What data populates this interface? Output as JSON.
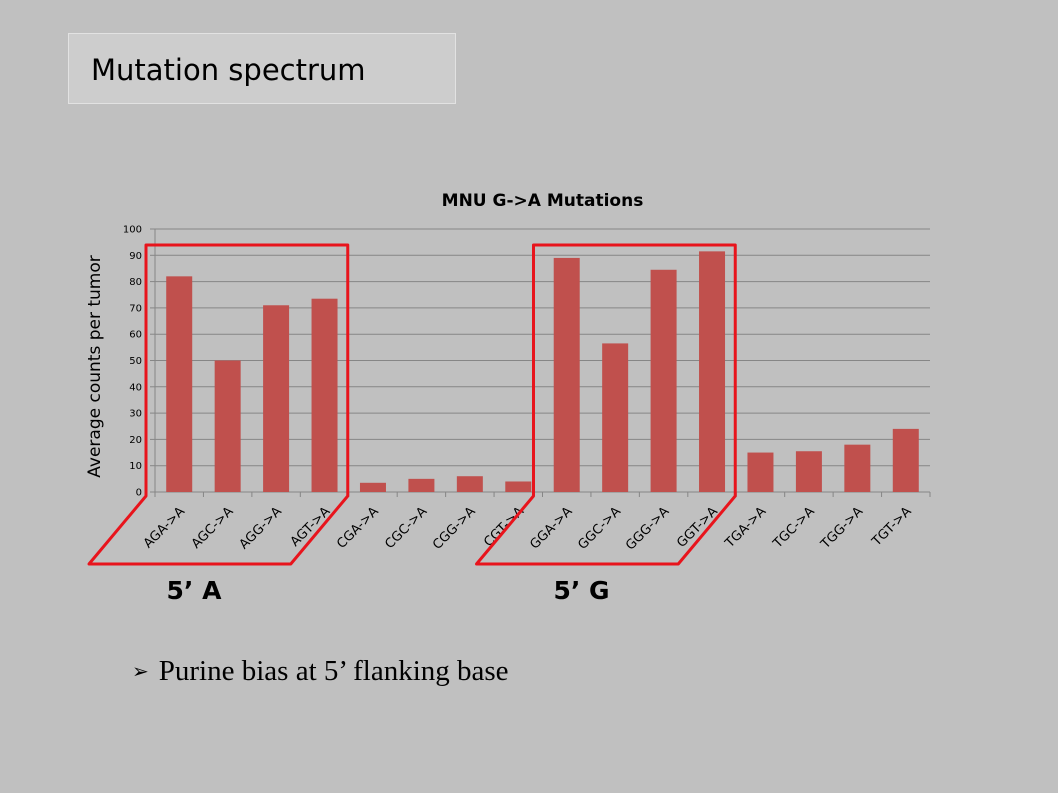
{
  "slide": {
    "title": "Mutation spectrum",
    "bullet": "Purine bias at 5’ flanking base",
    "bullet_icon": "arrow-bullet-icon"
  },
  "chart_data": {
    "type": "bar",
    "title": "MNU G->A Mutations",
    "xlabel": "",
    "ylabel": "Average counts per tumor",
    "categories": [
      "AGA->A",
      "AGC->A",
      "AGG->A",
      "AGT->A",
      "CGA->A",
      "CGC->A",
      "CGG->A",
      "CGT->A",
      "GGA->A",
      "GGC->A",
      "GGG->A",
      "GGT->A",
      "TGA->A",
      "TGC->A",
      "TGG->A",
      "TGT->A"
    ],
    "values": [
      82,
      50,
      71,
      73.5,
      3.5,
      5,
      6,
      4,
      89,
      56.5,
      84.5,
      91.5,
      15,
      15.5,
      18,
      24
    ],
    "ylim": [
      0,
      100
    ],
    "yticks": [
      0,
      10,
      20,
      30,
      40,
      50,
      60,
      70,
      80,
      90,
      100
    ],
    "grid": true,
    "legend": "none",
    "bar_color": "#c0504d",
    "highlight_color": "#e8141c",
    "annotations": [
      {
        "label": "5’ A",
        "from_index": 0,
        "to_index": 3
      },
      {
        "label": "5’ G",
        "from_index": 8,
        "to_index": 11
      }
    ]
  }
}
